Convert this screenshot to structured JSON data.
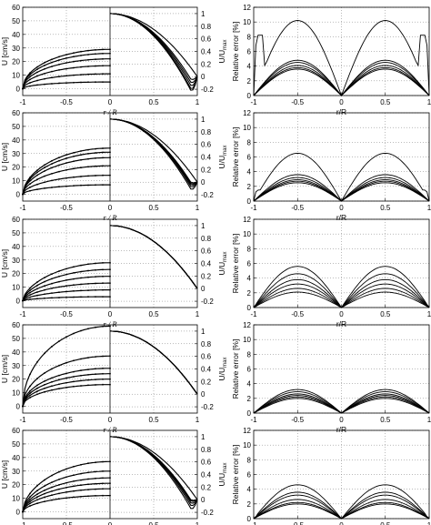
{
  "figure": {
    "left_ylabel": "U [cm/s]",
    "left_xlabel": "r / R",
    "right_axis_label_main": "U/U",
    "right_axis_label_sub": "max",
    "err_ylabel": "Relative error [%]",
    "err_xlabel": "r/R"
  },
  "chart_data": [
    {
      "type": "line",
      "panel": "row1-velocity",
      "left_half": {
        "x": [
          -1,
          0
        ],
        "ylabel": "U [cm/s]",
        "ylim": [
          -5,
          60
        ],
        "yticks": [
          0,
          10,
          20,
          30,
          40,
          50,
          60
        ],
        "xticks": [
          -1,
          -0.5,
          0
        ],
        "xlabel": "r / R",
        "profile_exponent": 0.5,
        "series_centerline": [
          5,
          11,
          17,
          22,
          26,
          29
        ]
      },
      "right_half": {
        "x": [
          0,
          1
        ],
        "ylabel": "U/U max",
        "ylim": [
          -0.3,
          1.1
        ],
        "yticks": [
          -0.2,
          0,
          0.2,
          0.4,
          0.6,
          0.8,
          1
        ],
        "xticks": [
          0.5,
          1
        ],
        "min_values": [
          -0.23,
          -0.2,
          -0.15,
          -0.1,
          -0.05,
          0.0
        ]
      },
      "grid": true
    },
    {
      "type": "line",
      "panel": "row1-error",
      "x": [
        -1,
        -0.5,
        0,
        0.5,
        1
      ],
      "ylabel": "Relative error [%]",
      "xlabel": "r/R",
      "ylim": [
        0,
        12
      ],
      "yticks": [
        0,
        2,
        4,
        6,
        8,
        10,
        12
      ],
      "xticks": [
        -1,
        -0.5,
        0,
        0.5,
        1
      ],
      "series_peak": [
        10.2,
        4.8,
        4.5,
        4.1,
        3.8,
        3.6
      ],
      "edge_value_top_series": 8.2,
      "grid": true
    },
    {
      "type": "line",
      "panel": "row2-velocity",
      "left_half": {
        "x": [
          -1,
          0
        ],
        "ylabel": "U [cm/s]",
        "ylim": [
          -5,
          60
        ],
        "yticks": [
          0,
          10,
          20,
          30,
          40,
          50,
          60
        ],
        "xticks": [
          -1,
          -0.5,
          0
        ],
        "xlabel": "r / R",
        "profile_exponent": 0.55,
        "series_centerline": [
          7,
          14,
          21,
          27,
          31,
          34
        ]
      },
      "right_half": {
        "x": [
          0,
          1
        ],
        "ylabel": "U/U max",
        "ylim": [
          -0.3,
          1.1
        ],
        "yticks": [
          -0.2,
          0,
          0.2,
          0.4,
          0.6,
          0.8,
          1
        ],
        "xticks": [
          0.5,
          1
        ],
        "min_values": [
          -0.12,
          -0.08,
          -0.05,
          -0.03,
          -0.01,
          0.0
        ]
      },
      "grid": true
    },
    {
      "type": "line",
      "panel": "row2-error",
      "x": [
        -1,
        -0.5,
        0,
        0.5,
        1
      ],
      "ylabel": "Relative error [%]",
      "xlabel": "r/R",
      "ylim": [
        0,
        12
      ],
      "yticks": [
        0,
        2,
        4,
        6,
        8,
        10,
        12
      ],
      "xticks": [
        -1,
        -0.5,
        0,
        0.5,
        1
      ],
      "series_peak": [
        6.5,
        3.6,
        3.2,
        2.9,
        2.7,
        2.5
      ],
      "edge_value_top_series": 1.5,
      "grid": true
    },
    {
      "type": "line",
      "panel": "row3-velocity",
      "left_half": {
        "x": [
          -1,
          0
        ],
        "ylabel": "U [cm/s]",
        "ylim": [
          -5,
          60
        ],
        "yticks": [
          0,
          10,
          20,
          30,
          40,
          50,
          60
        ],
        "xticks": [
          -1,
          -0.5,
          0
        ],
        "xlabel": "r / R",
        "profile_exponent": 0.6,
        "series_centerline": [
          3,
          8,
          13,
          18,
          23,
          28
        ]
      },
      "right_half": {
        "x": [
          0,
          1
        ],
        "ylabel": "U/U max",
        "ylim": [
          -0.3,
          1.1
        ],
        "yticks": [
          -0.2,
          0,
          0.2,
          0.4,
          0.6,
          0.8,
          1
        ],
        "xticks": [
          0.5,
          1
        ],
        "min_values": [
          0.0,
          0.0,
          0.0,
          0.0,
          0.0,
          0.0
        ]
      },
      "grid": true
    },
    {
      "type": "line",
      "panel": "row3-error",
      "x": [
        -1,
        -0.5,
        0,
        0.5,
        1
      ],
      "ylabel": "Relative error [%]",
      "xlabel": "r/R",
      "ylim": [
        0,
        12
      ],
      "yticks": [
        0,
        2,
        4,
        6,
        8,
        10,
        12
      ],
      "xticks": [
        -1,
        -0.5,
        0,
        0.5,
        1
      ],
      "series_peak": [
        5.6,
        4.6,
        3.8,
        3.2,
        2.6,
        2.1
      ],
      "edge_value_top_series": 0.5,
      "grid": true
    },
    {
      "type": "line",
      "panel": "row4-velocity",
      "left_half": {
        "x": [
          -1,
          0
        ],
        "ylabel": "U [cm/s]",
        "ylim": [
          -5,
          60
        ],
        "yticks": [
          0,
          10,
          20,
          30,
          40,
          50,
          60
        ],
        "xticks": [
          -1,
          -0.5,
          0
        ],
        "xlabel": "r / R",
        "profile_exponent": 0.5,
        "series_centerline": [
          16,
          20,
          24,
          28,
          37,
          59
        ]
      },
      "right_half": {
        "x": [
          0,
          1
        ],
        "ylabel": "U/U max",
        "ylim": [
          -0.3,
          1.1
        ],
        "yticks": [
          -0.2,
          0,
          0.2,
          0.4,
          0.6,
          0.8,
          1
        ],
        "xticks": [
          0.5,
          1
        ],
        "min_values": [
          0.0,
          0.0,
          0.0,
          0.0,
          0.0,
          0.0
        ]
      },
      "grid": true
    },
    {
      "type": "line",
      "panel": "row4-error",
      "x": [
        -1,
        -0.5,
        0,
        0.5,
        1
      ],
      "ylabel": "Relative error [%]",
      "xlabel": "r/R",
      "ylim": [
        0,
        12
      ],
      "yticks": [
        0,
        2,
        4,
        6,
        8,
        10,
        12
      ],
      "xticks": [
        -1,
        -0.5,
        0,
        0.5,
        1
      ],
      "series_peak": [
        3.2,
        2.9,
        2.6,
        2.4,
        2.2,
        2.0
      ],
      "edge_value_top_series": 0.3,
      "grid": true
    },
    {
      "type": "line",
      "panel": "row5-velocity",
      "left_half": {
        "x": [
          -1,
          0
        ],
        "ylabel": "U [cm/s]",
        "ylim": [
          -5,
          60
        ],
        "yticks": [
          0,
          10,
          20,
          30,
          40,
          50,
          60
        ],
        "xticks": [
          -1,
          -0.5,
          0
        ],
        "xlabel": "r / R",
        "profile_exponent": 0.55,
        "series_centerline": [
          12,
          17,
          21,
          25,
          30,
          37
        ]
      },
      "right_half": {
        "x": [
          0,
          1
        ],
        "ylabel": "U/U max",
        "ylim": [
          -0.3,
          1.1
        ],
        "yticks": [
          -0.2,
          0,
          0.2,
          0.4,
          0.6,
          0.8,
          1
        ],
        "xticks": [
          0.5,
          1
        ],
        "min_values": [
          -0.15,
          -0.1,
          -0.06,
          -0.03,
          -0.01,
          0.0
        ]
      },
      "grid": true
    },
    {
      "type": "line",
      "panel": "row5-error",
      "x": [
        -1,
        -0.5,
        0,
        0.5,
        1
      ],
      "ylabel": "Relative error [%]",
      "xlabel": "r/R",
      "ylim": [
        0,
        12
      ],
      "yticks": [
        0,
        2,
        4,
        6,
        8,
        10,
        12
      ],
      "xticks": [
        -1,
        -0.5,
        0,
        0.5,
        1
      ],
      "series_peak": [
        4.6,
        3.6,
        3.2,
        2.6,
        2.2,
        2.0
      ],
      "edge_value_top_series": 0.3,
      "grid": true
    }
  ]
}
